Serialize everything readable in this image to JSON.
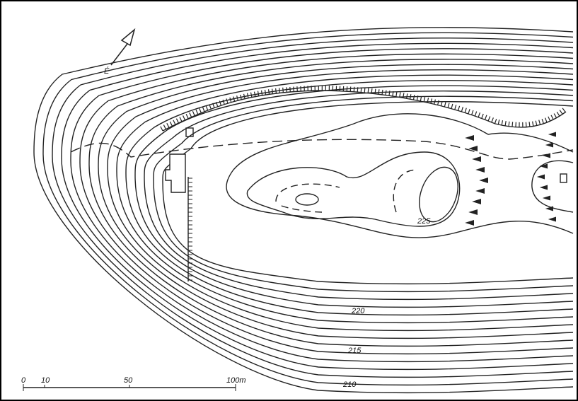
{
  "north_arrow": {
    "label": "É"
  },
  "contour_labels": [
    "225",
    "220",
    "215",
    "210"
  ],
  "scale_bar": {
    "labels": [
      "0",
      "10",
      "50",
      "100m"
    ]
  }
}
